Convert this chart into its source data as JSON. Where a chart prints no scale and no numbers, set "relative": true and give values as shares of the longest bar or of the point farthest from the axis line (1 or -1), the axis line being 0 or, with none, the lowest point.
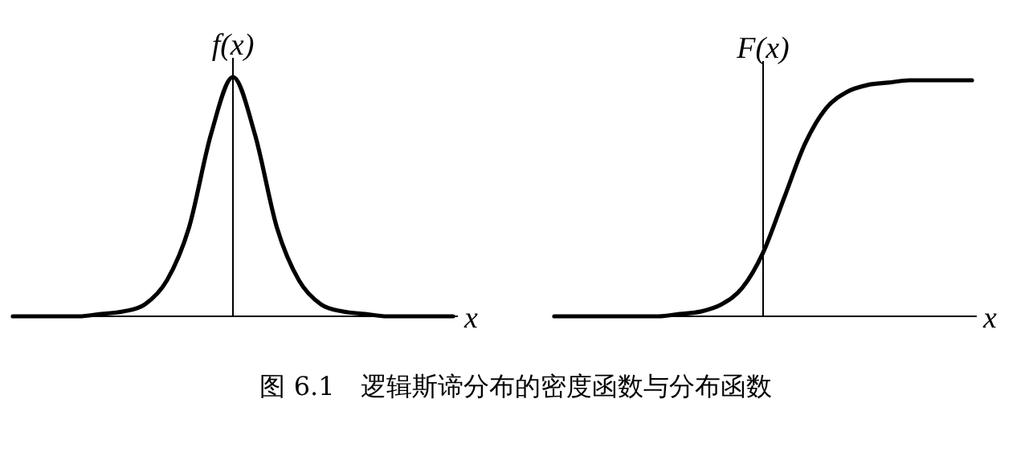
{
  "chart_data": [
    {
      "type": "line",
      "relative": true,
      "ylabel": "f(x)",
      "xlabel": "x",
      "categories": [
        null,
        null,
        null,
        null,
        null,
        null,
        null,
        null,
        null,
        null,
        null,
        null,
        null,
        null,
        null,
        null,
        null,
        null,
        null,
        null,
        null
      ],
      "series": [
        {
          "color": "#000000",
          "values": [
            0,
            0,
            0,
            0,
            0.01,
            0.02,
            0.05,
            0.15,
            0.37,
            0.76,
            1,
            0.76,
            0.37,
            0.15,
            0.05,
            0.02,
            0.01,
            0,
            0,
            0,
            0
          ]
        }
      ],
      "annotations": [
        "图 6.1　逻辑斯谛分布的密度函数与分布函数"
      ]
    },
    {
      "type": "line",
      "relative": true,
      "ylabel": "F(x)",
      "xlabel": "x",
      "categories": [
        null,
        null,
        null,
        null,
        null,
        null,
        null,
        null,
        null,
        null,
        null,
        null,
        null,
        null,
        null,
        null,
        null,
        null,
        null,
        null,
        null
      ],
      "series": [
        {
          "color": "#000000",
          "values": [
            0,
            0,
            0,
            0,
            0,
            0,
            0.01,
            0.02,
            0.05,
            0.12,
            0.27,
            0.5,
            0.73,
            0.88,
            0.95,
            0.98,
            0.99,
            1,
            1,
            1,
            1
          ]
        }
      ]
    }
  ]
}
